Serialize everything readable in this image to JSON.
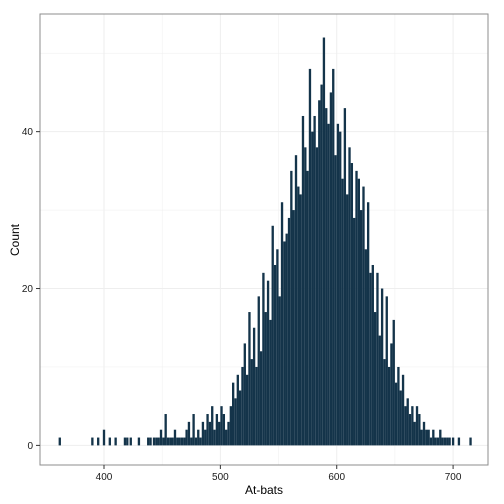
{
  "chart_data": {
    "type": "bar",
    "title": "",
    "xlabel": "At-bats",
    "ylabel": "Count",
    "xlim": [
      345,
      730
    ],
    "ylim": [
      -2.5,
      55
    ],
    "x_ticks": [
      400,
      500,
      600,
      700
    ],
    "y_ticks": [
      0,
      20,
      40
    ],
    "grid": true,
    "legend": "none",
    "bar_color": "#14344a",
    "panel_border_color": "#8c8c8c",
    "grid_color": "#eeeeee",
    "x": [
      362,
      390,
      395,
      400,
      405,
      410,
      418,
      420,
      423,
      430,
      438,
      440,
      443,
      445,
      447,
      449,
      451,
      453,
      455,
      457,
      459,
      461,
      463,
      465,
      467,
      469,
      471,
      473,
      475,
      477,
      479,
      481,
      483,
      485,
      487,
      489,
      491,
      493,
      495,
      497,
      499,
      501,
      503,
      505,
      507,
      509,
      511,
      513,
      515,
      517,
      519,
      521,
      523,
      525,
      527,
      529,
      531,
      533,
      535,
      537,
      539,
      541,
      543,
      545,
      547,
      549,
      551,
      553,
      555,
      557,
      559,
      561,
      563,
      565,
      567,
      569,
      571,
      573,
      575,
      577,
      579,
      581,
      583,
      585,
      587,
      589,
      591,
      593,
      595,
      597,
      599,
      601,
      603,
      605,
      607,
      609,
      611,
      613,
      615,
      617,
      619,
      621,
      623,
      625,
      627,
      629,
      631,
      633,
      635,
      637,
      639,
      641,
      643,
      645,
      647,
      649,
      651,
      653,
      655,
      657,
      659,
      661,
      663,
      665,
      667,
      669,
      671,
      673,
      675,
      677,
      679,
      681,
      683,
      685,
      687,
      689,
      691,
      693,
      695,
      697,
      700,
      705,
      715
    ],
    "values": [
      1,
      1,
      1,
      2,
      1,
      1,
      1,
      1,
      1,
      1,
      1,
      1,
      1,
      1,
      1,
      2,
      1,
      4,
      1,
      1,
      1,
      2,
      1,
      1,
      1,
      1,
      2,
      3,
      1,
      4,
      1,
      2,
      1,
      3,
      2,
      4,
      3,
      5,
      2,
      4,
      3,
      5,
      4,
      2,
      3,
      5,
      8,
      6,
      9,
      7,
      10,
      13,
      9,
      17,
      11,
      15,
      10,
      19,
      12,
      22,
      17,
      21,
      16,
      28,
      23,
      25,
      19,
      31,
      26,
      27,
      29,
      35,
      30,
      37,
      33,
      32,
      42,
      38,
      35,
      48,
      40,
      42,
      38,
      44,
      46,
      52,
      43,
      41,
      45,
      48,
      37,
      41,
      40,
      34,
      43,
      32,
      38,
      36,
      29,
      35,
      34,
      30,
      33,
      25,
      31,
      22,
      23,
      17,
      22,
      14,
      20,
      11,
      19,
      10,
      13,
      16,
      8,
      10,
      7,
      9,
      5,
      6,
      4,
      5,
      3,
      5,
      4,
      2,
      3,
      2,
      2,
      1,
      2,
      1,
      1,
      2,
      1,
      1,
      1,
      1,
      1,
      1,
      1
    ]
  }
}
